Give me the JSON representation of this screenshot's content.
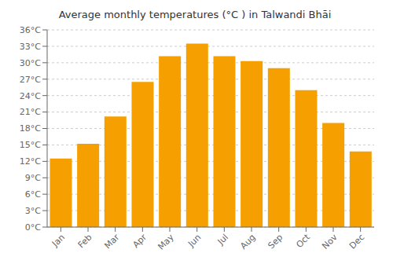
{
  "chart_data": {
    "type": "bar",
    "title": "Average monthly temperatures (°C ) in Talwandi Bhāi",
    "categories": [
      "Jan",
      "Feb",
      "Mar",
      "Apr",
      "May",
      "Jun",
      "Jul",
      "Aug",
      "Sep",
      "Oct",
      "Nov",
      "Dec"
    ],
    "values": [
      12.5,
      15.2,
      20.2,
      26.5,
      31.2,
      33.5,
      31.2,
      30.3,
      29.0,
      25.0,
      19.0,
      13.8
    ],
    "color": "#F5A000",
    "ylim": [
      0,
      36
    ],
    "yticks": [
      {
        "value": 0,
        "label": "0°C"
      },
      {
        "value": 3,
        "label": "3°C"
      },
      {
        "value": 6,
        "label": "6°C"
      },
      {
        "value": 9,
        "label": "9°C"
      },
      {
        "value": 12,
        "label": "12°C"
      },
      {
        "value": 15,
        "label": "15°C"
      },
      {
        "value": 18,
        "label": "18°C"
      },
      {
        "value": 21,
        "label": "21°C"
      },
      {
        "value": 24,
        "label": "24°C"
      },
      {
        "value": 27,
        "label": "27°C"
      },
      {
        "value": 30,
        "label": "30°C"
      },
      {
        "value": 33,
        "label": "33°C"
      },
      {
        "value": 36,
        "label": "36°C"
      }
    ],
    "grid": true
  }
}
